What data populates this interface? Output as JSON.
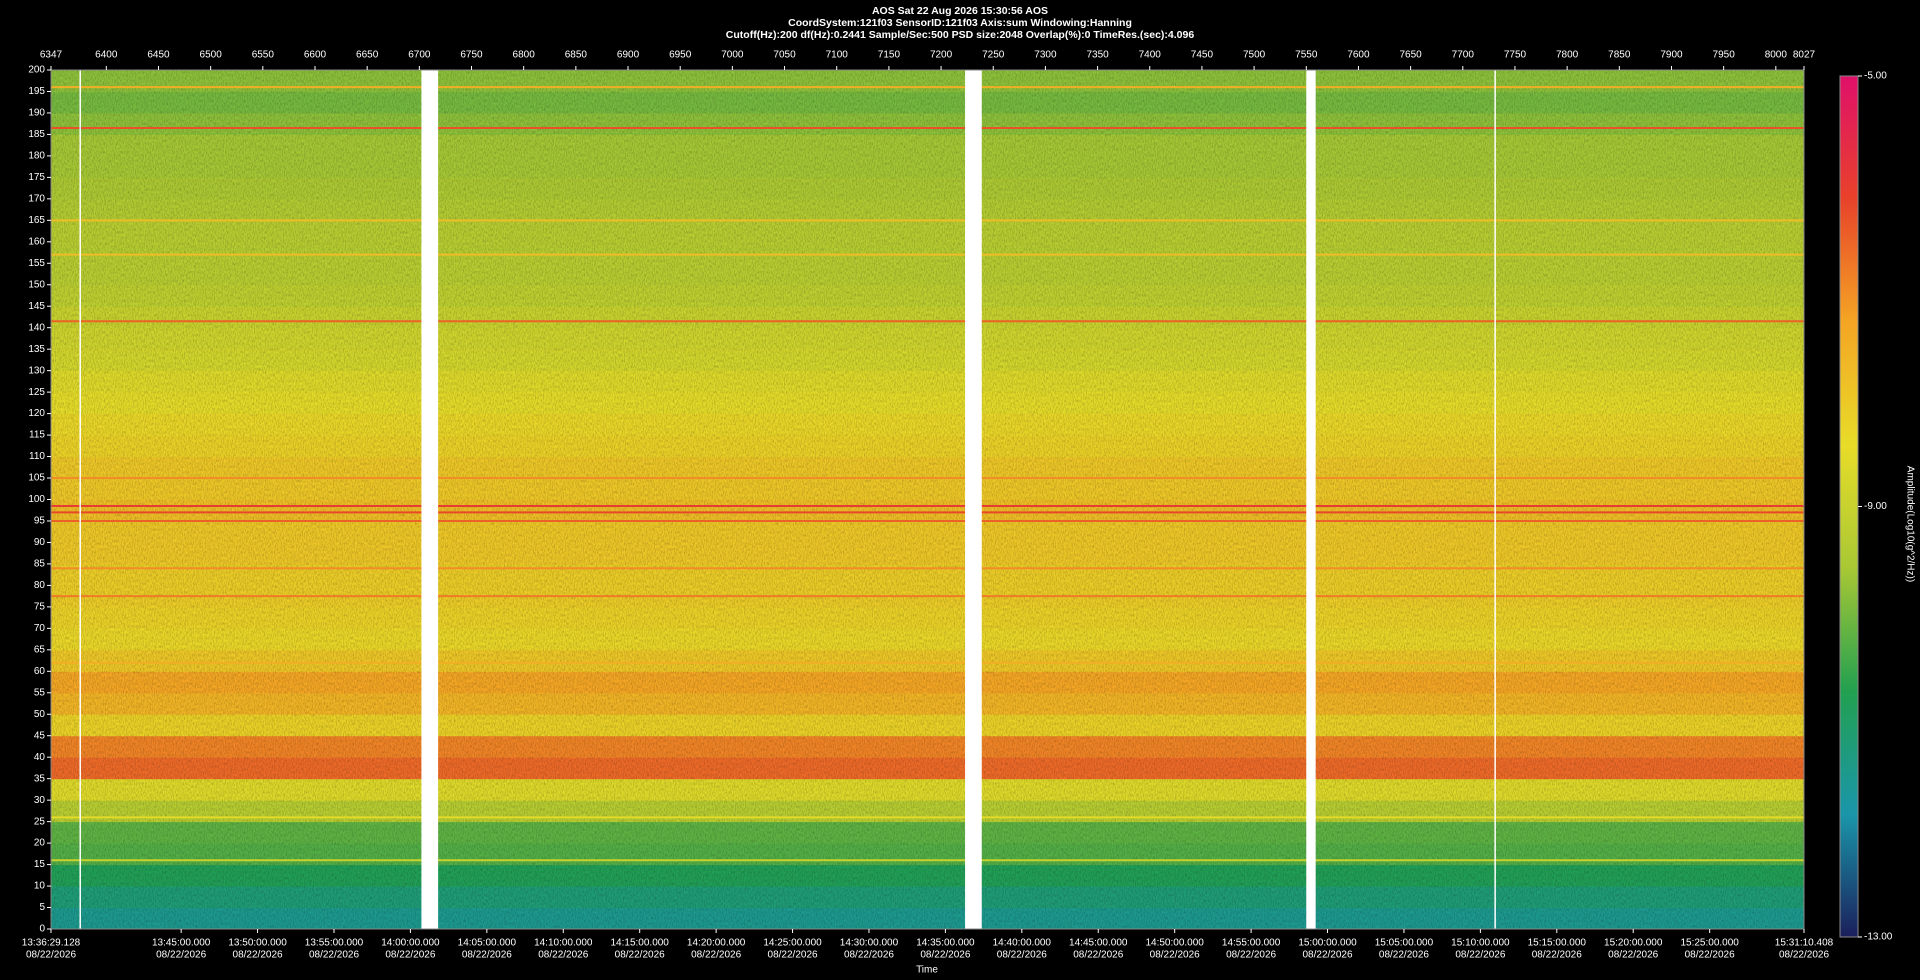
{
  "chart_data": {
    "type": "spectrogram",
    "title": "AOS  Sat 22 Aug 2026 15:30:56  AOS",
    "subtitle": "CoordSystem:121f03   SensorID:121f03   Axis:sum   Windowing:Hanning",
    "settings_line": "Cutoff(Hz):200     df(Hz):0.2441     Sample/Sec:500     PSD size:2048     Overlap(%):0     TimeRes.(sec):4.096",
    "x_label": "Time",
    "colorbar_label": "Amplitude(Log10(g^2/Hz))",
    "date": "08/22/2026",
    "xlim": [
      6347,
      8027
    ],
    "xticks": [
      6347,
      6400,
      6450,
      6500,
      6550,
      6600,
      6650,
      6700,
      6750,
      6800,
      6850,
      6900,
      6950,
      7000,
      7050,
      7100,
      7150,
      7200,
      7250,
      7300,
      7350,
      7400,
      7450,
      7500,
      7550,
      7600,
      7650,
      7700,
      7750,
      7800,
      7850,
      7900,
      7950,
      8000,
      8027
    ],
    "time_ticks": [
      {
        "value": 6347,
        "label": "13:36:29.128"
      },
      {
        "value": 6471.73,
        "label": "13:45:00.000"
      },
      {
        "value": 6544.97,
        "label": "13:50:00.000"
      },
      {
        "value": 6618.21,
        "label": "13:55:00.000"
      },
      {
        "value": 6691.45,
        "label": "14:00:00.000"
      },
      {
        "value": 6764.7,
        "label": "14:05:00.000"
      },
      {
        "value": 6837.94,
        "label": "14:10:00.000"
      },
      {
        "value": 6911.18,
        "label": "14:15:00.000"
      },
      {
        "value": 6984.42,
        "label": "14:20:00.000"
      },
      {
        "value": 7057.67,
        "label": "14:25:00.000"
      },
      {
        "value": 7130.91,
        "label": "14:30:00.000"
      },
      {
        "value": 7204.15,
        "label": "14:35:00.000"
      },
      {
        "value": 7277.39,
        "label": "14:40:00.000"
      },
      {
        "value": 7350.64,
        "label": "14:45:00.000"
      },
      {
        "value": 7423.88,
        "label": "14:50:00.000"
      },
      {
        "value": 7497.12,
        "label": "14:55:00.000"
      },
      {
        "value": 7570.36,
        "label": "15:00:00.000"
      },
      {
        "value": 7643.61,
        "label": "15:05:00.000"
      },
      {
        "value": 7716.85,
        "label": "15:10:00.000"
      },
      {
        "value": 7790.09,
        "label": "15:15:00.000"
      },
      {
        "value": 7863.33,
        "label": "15:20:00.000"
      },
      {
        "value": 7936.58,
        "label": "15:25:00.000"
      },
      {
        "value": 8027,
        "label": "15:31:10.408"
      }
    ],
    "ylim": [
      0,
      200
    ],
    "yticks": [
      0,
      5,
      10,
      15,
      20,
      25,
      30,
      35,
      40,
      45,
      50,
      55,
      60,
      65,
      70,
      75,
      80,
      85,
      90,
      95,
      100,
      105,
      110,
      115,
      120,
      125,
      130,
      135,
      140,
      145,
      150,
      155,
      160,
      165,
      170,
      175,
      180,
      185,
      190,
      195,
      200
    ],
    "y_bins": [
      0,
      5,
      10,
      15,
      20,
      25,
      30,
      35,
      40,
      45,
      50,
      55,
      60,
      65,
      70,
      75,
      80,
      85,
      90,
      95,
      100,
      105,
      110,
      115,
      120,
      125,
      130,
      135,
      140,
      145,
      150,
      155,
      160,
      165,
      170,
      175,
      180,
      185,
      190,
      195,
      200
    ],
    "amplitude": [
      -11.5,
      -11.2,
      -10.8,
      -10.3,
      -10.2,
      -9.3,
      -8.6,
      -6.6,
      -6.9,
      -8.2,
      -7.6,
      -7.3,
      -8.0,
      -8.3,
      -8.2,
      -8.1,
      -8.1,
      -8.0,
      -8.0,
      -7.8,
      -8.0,
      -8.0,
      -8.2,
      -8.3,
      -8.5,
      -8.6,
      -8.8,
      -8.9,
      -9.0,
      -9.2,
      -9.3,
      -9.3,
      -9.3,
      -9.4,
      -9.5,
      -9.6,
      -9.6,
      -9.8,
      -10.0,
      -9.8
    ],
    "tones": [
      {
        "freq": 196,
        "amplitude": -7.5
      },
      {
        "freq": 186.5,
        "amplitude": -6.3
      },
      {
        "freq": 165,
        "amplitude": -7.8
      },
      {
        "freq": 157,
        "amplitude": -7.8
      },
      {
        "freq": 141.5,
        "amplitude": -6.5
      },
      {
        "freq": 105,
        "amplitude": -7.0
      },
      {
        "freq": 98.5,
        "amplitude": -6.0
      },
      {
        "freq": 97,
        "amplitude": -6.2
      },
      {
        "freq": 95,
        "amplitude": -6.5
      },
      {
        "freq": 84,
        "amplitude": -7.0
      },
      {
        "freq": 77.5,
        "amplitude": -6.8
      },
      {
        "freq": 62,
        "amplitude": -7.5
      },
      {
        "freq": 26,
        "amplitude": -8.5
      },
      {
        "freq": 16,
        "amplitude": -9.0
      }
    ],
    "gaps": [
      [
        6702,
        6718
      ],
      [
        7223,
        7239
      ],
      [
        7550,
        7559
      ]
    ],
    "markers": [
      6375,
      7731
    ],
    "clim": [
      -13,
      -5
    ],
    "cticks": [
      {
        "value": -13,
        "label": "-13.00"
      },
      {
        "value": -9,
        "label": "-9.00"
      },
      {
        "value": -5,
        "label": "-5.00"
      }
    ],
    "colormap": [
      "#1b1f5c",
      "#1a96aa",
      "#22a050",
      "#a8c834",
      "#e8dc28",
      "#f4a524",
      "#e8422a",
      "#e0106a"
    ]
  }
}
